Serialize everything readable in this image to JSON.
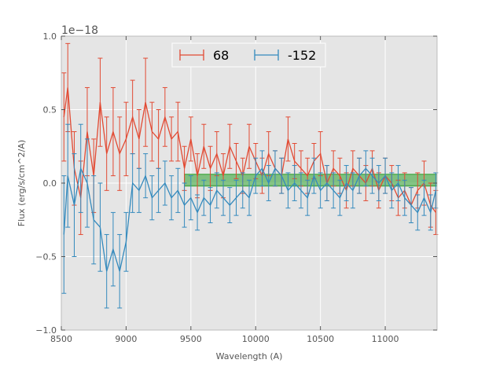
{
  "chart_data": {
    "type": "line",
    "xlabel": "Wavelength (A)",
    "ylabel": "Flux (erg/s/cm^2/A)",
    "y_offset_label": "1e−18",
    "xlim": [
      8500,
      11400
    ],
    "ylim": [
      -1.0,
      1.0
    ],
    "x_ticks": [
      8500,
      9000,
      9500,
      10000,
      10500,
      11000
    ],
    "y_ticks": [
      -1.0,
      -0.5,
      0.0,
      0.5,
      1.0
    ],
    "x_tick_labels": [
      "8500",
      "9000",
      "9500",
      "10000",
      "10500",
      "11000"
    ],
    "y_tick_labels": [
      "−1.0",
      "−0.5",
      "0.0",
      "0.5",
      "1.0"
    ],
    "grid": true,
    "background": "#e5e5e5",
    "legend_position": "top-center",
    "band": {
      "x_start": 9450,
      "x_end": 11400,
      "y_low": -0.02,
      "y_high": 0.06,
      "color": "#2ca02c"
    },
    "series": [
      {
        "name": "68",
        "color": "#e24a33",
        "x": [
          8520,
          8550,
          8600,
          8650,
          8700,
          8750,
          8800,
          8850,
          8900,
          8950,
          9000,
          9050,
          9100,
          9150,
          9200,
          9250,
          9300,
          9350,
          9400,
          9450,
          9500,
          9550,
          9600,
          9650,
          9700,
          9750,
          9800,
          9850,
          9900,
          9950,
          10000,
          10050,
          10100,
          10150,
          10200,
          10250,
          10300,
          10350,
          10400,
          10450,
          10500,
          10550,
          10600,
          10650,
          10700,
          10750,
          10800,
          10850,
          10900,
          10950,
          11000,
          11050,
          11100,
          11150,
          11200,
          11250,
          11300,
          11350,
          11390
        ],
        "y": [
          0.45,
          0.65,
          0.1,
          -0.1,
          0.35,
          0.05,
          0.55,
          0.2,
          0.35,
          0.2,
          0.3,
          0.45,
          0.3,
          0.55,
          0.35,
          0.3,
          0.45,
          0.3,
          0.35,
          0.1,
          0.3,
          0.05,
          0.25,
          0.1,
          0.2,
          0.05,
          0.25,
          0.15,
          0.05,
          0.25,
          0.15,
          0.05,
          0.2,
          0.1,
          0.05,
          0.3,
          0.15,
          0.1,
          0.05,
          0.15,
          0.2,
          0.0,
          0.1,
          0.05,
          -0.05,
          0.1,
          0.05,
          0.0,
          0.1,
          -0.05,
          0.05,
          0.0,
          -0.1,
          -0.05,
          -0.15,
          -0.05,
          0.0,
          -0.15,
          -0.2
        ],
        "err": [
          0.3,
          0.3,
          0.25,
          0.25,
          0.3,
          0.25,
          0.3,
          0.25,
          0.3,
          0.25,
          0.25,
          0.25,
          0.2,
          0.3,
          0.2,
          0.2,
          0.2,
          0.15,
          0.2,
          0.15,
          0.15,
          0.15,
          0.15,
          0.15,
          0.15,
          0.15,
          0.15,
          0.12,
          0.12,
          0.15,
          0.12,
          0.12,
          0.15,
          0.12,
          0.12,
          0.15,
          0.12,
          0.12,
          0.12,
          0.12,
          0.15,
          0.12,
          0.12,
          0.12,
          0.12,
          0.12,
          0.12,
          0.12,
          0.12,
          0.12,
          0.12,
          0.12,
          0.12,
          0.12,
          0.12,
          0.12,
          0.15,
          0.15,
          0.15
        ]
      },
      {
        "name": "-152",
        "color": "#348abd",
        "x": [
          8520,
          8550,
          8600,
          8650,
          8700,
          8750,
          8800,
          8850,
          8900,
          8950,
          9000,
          9050,
          9100,
          9150,
          9200,
          9250,
          9300,
          9350,
          9400,
          9450,
          9500,
          9550,
          9600,
          9650,
          9700,
          9750,
          9800,
          9850,
          9900,
          9950,
          10000,
          10050,
          10100,
          10150,
          10200,
          10250,
          10300,
          10350,
          10400,
          10450,
          10500,
          10550,
          10600,
          10650,
          10700,
          10750,
          10800,
          10850,
          10900,
          10950,
          11000,
          11050,
          11100,
          11150,
          11200,
          11250,
          11300,
          11350,
          11390
        ],
        "y": [
          -0.35,
          0.05,
          -0.15,
          0.1,
          0.0,
          -0.25,
          -0.3,
          -0.6,
          -0.45,
          -0.6,
          -0.4,
          0.0,
          -0.05,
          0.05,
          -0.1,
          -0.05,
          0.0,
          -0.1,
          -0.05,
          -0.15,
          -0.1,
          -0.2,
          -0.1,
          -0.15,
          -0.05,
          -0.1,
          -0.15,
          -0.1,
          -0.05,
          -0.1,
          0.05,
          0.1,
          0.0,
          0.1,
          0.05,
          -0.05,
          0.0,
          -0.05,
          -0.1,
          0.05,
          -0.05,
          0.0,
          -0.05,
          -0.1,
          0.0,
          -0.05,
          0.05,
          0.1,
          0.05,
          0.0,
          0.05,
          -0.05,
          0.0,
          -0.1,
          -0.15,
          -0.2,
          -0.1,
          -0.2,
          -0.05
        ],
        "err": [
          0.4,
          0.35,
          0.35,
          0.3,
          0.3,
          0.3,
          0.3,
          0.25,
          0.25,
          0.25,
          0.2,
          0.2,
          0.15,
          0.15,
          0.15,
          0.15,
          0.15,
          0.15,
          0.15,
          0.15,
          0.15,
          0.12,
          0.12,
          0.12,
          0.12,
          0.12,
          0.12,
          0.12,
          0.12,
          0.12,
          0.12,
          0.12,
          0.12,
          0.12,
          0.12,
          0.12,
          0.12,
          0.12,
          0.12,
          0.12,
          0.12,
          0.12,
          0.12,
          0.12,
          0.12,
          0.12,
          0.12,
          0.12,
          0.12,
          0.12,
          0.12,
          0.12,
          0.12,
          0.12,
          0.12,
          0.12,
          0.12,
          0.12,
          0.12
        ]
      }
    ]
  }
}
